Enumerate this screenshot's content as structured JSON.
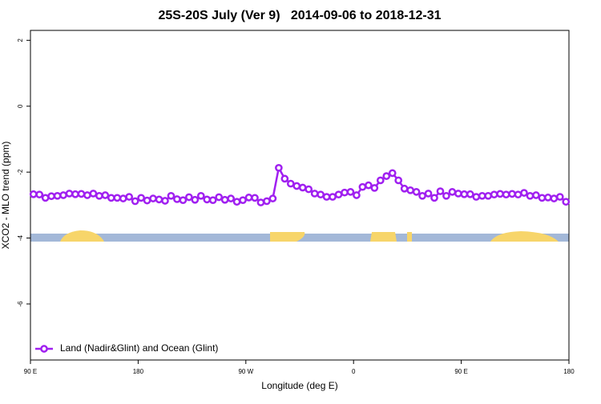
{
  "chart_data": {
    "type": "line",
    "title": "25S-20S July (Ver 9)   2014-09-06 to 2018-12-31",
    "x_label": "Longitude (deg E)",
    "y_label": "XCO2 - MLO trend (ppm)",
    "xlim": [
      90,
      540
    ],
    "xticks": [
      {
        "value": 90,
        "label": "90 E"
      },
      180,
      {
        "value": 270,
        "label": "90 W"
      },
      {
        "value": 360,
        "label": "0"
      },
      {
        "value": 450,
        "label": "90 E"
      },
      {
        "value": 540,
        "label": "180"
      }
    ],
    "ylim": [
      -7.7,
      2.3
    ],
    "yticks": [
      2,
      0,
      -2,
      -4,
      -6
    ],
    "legend": "bottom left",
    "x": [
      92.5,
      97.5,
      102.5,
      107.5,
      112.5,
      117.5,
      122.5,
      127.5,
      132.5,
      137.5,
      142.5,
      147.5,
      152.5,
      157.5,
      162.5,
      167.5,
      172.5,
      177.5,
      182.5,
      187.5,
      192.5,
      197.5,
      202.5,
      207.5,
      212.5,
      217.5,
      222.5,
      227.5,
      232.5,
      237.5,
      242.5,
      247.5,
      252.5,
      257.5,
      262.5,
      267.5,
      272.5,
      277.5,
      282.5,
      287.5,
      292.5,
      297.5,
      302.5,
      307.5,
      312.5,
      317.5,
      322.5,
      327.5,
      332.5,
      337.5,
      342.5,
      347.5,
      352.5,
      357.5,
      362.5,
      367.5,
      372.5,
      377.5,
      382.5,
      387.5,
      392.5,
      397.5,
      402.5,
      407.5,
      412.5,
      417.5,
      422.5,
      427.5,
      432.5,
      437.5,
      442.5,
      447.5,
      452.5,
      457.5,
      462.5,
      467.5,
      472.5,
      477.5,
      482.5,
      487.5,
      492.5,
      497.5,
      502.5,
      507.5,
      512.5,
      517.5,
      522.5,
      527.5,
      532.5,
      537.5
    ],
    "series": [
      {
        "name": "Land (Nadir&Glint) and Ocean (Glint)",
        "color": "#a020f0",
        "values": [
          -2.67,
          -2.68,
          -2.78,
          -2.73,
          -2.72,
          -2.7,
          -2.65,
          -2.67,
          -2.66,
          -2.7,
          -2.65,
          -2.72,
          -2.7,
          -2.78,
          -2.78,
          -2.8,
          -2.75,
          -2.88,
          -2.78,
          -2.86,
          -2.8,
          -2.83,
          -2.87,
          -2.72,
          -2.82,
          -2.85,
          -2.76,
          -2.84,
          -2.72,
          -2.83,
          -2.85,
          -2.76,
          -2.84,
          -2.8,
          -2.9,
          -2.85,
          -2.77,
          -2.78,
          -2.92,
          -2.88,
          -2.8,
          -1.87,
          -2.2,
          -2.35,
          -2.42,
          -2.47,
          -2.52,
          -2.65,
          -2.68,
          -2.75,
          -2.75,
          -2.68,
          -2.62,
          -2.6,
          -2.7,
          -2.45,
          -2.4,
          -2.48,
          -2.25,
          -2.12,
          -2.03,
          -2.25,
          -2.5,
          -2.55,
          -2.6,
          -2.72,
          -2.65,
          -2.78,
          -2.58,
          -2.72,
          -2.6,
          -2.65,
          -2.67,
          -2.67,
          -2.75,
          -2.72,
          -2.72,
          -2.68,
          -2.66,
          -2.68,
          -2.66,
          -2.68,
          -2.63,
          -2.72,
          -2.7,
          -2.78,
          -2.77,
          -2.8,
          -2.75,
          -2.9
        ]
      }
    ]
  }
}
